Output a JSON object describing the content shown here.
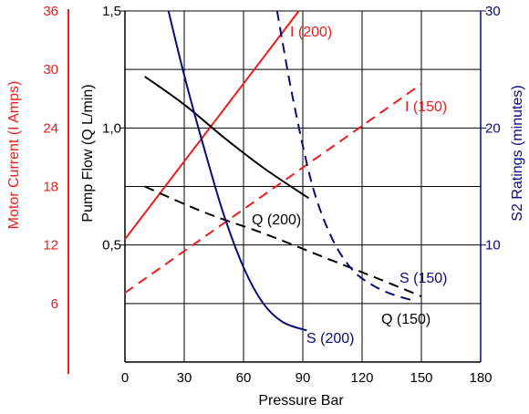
{
  "chart_data": {
    "type": "line",
    "xlabel": "Pressure Bar",
    "ylabel_left_outer": "Motor Current (I Amps)",
    "ylabel_left_inner": "Pump Flow (Q L/min)",
    "ylabel_right": "S2 Ratings (minutes)",
    "xlim": [
      0,
      180
    ],
    "xticks": [
      "0",
      "30",
      "60",
      "90",
      "120",
      "150",
      "180"
    ],
    "current_axis": {
      "ylim": [
        0,
        36
      ],
      "ticks": [
        "6",
        "12",
        "18",
        "24",
        "30",
        "36"
      ]
    },
    "flow_axis": {
      "ylim": [
        0,
        1.5
      ],
      "ticks": [
        "0,5",
        "1,0",
        "1,5"
      ]
    },
    "s2_axis": {
      "ylim": [
        0,
        30
      ],
      "ticks": [
        "10",
        "20",
        "30"
      ]
    },
    "grid": true,
    "colors": {
      "current": "#ee1c1c",
      "flow": "#000000",
      "s2": "#0a0a78",
      "grid": "#000000"
    },
    "series": [
      {
        "name": "I (200)",
        "axis": "current",
        "dash": false,
        "x": [
          0,
          88
        ],
        "y": [
          12.6,
          36
        ]
      },
      {
        "name": "I (150)",
        "axis": "current",
        "dash": false,
        "dashed": true,
        "x": [
          0,
          150
        ],
        "y": [
          7.1,
          28.5
        ]
      },
      {
        "name": "Q (200)",
        "axis": "flow",
        "dashed": false,
        "x": [
          10,
          30,
          50,
          70,
          93
        ],
        "y": [
          1.22,
          1.1,
          0.96,
          0.83,
          0.7
        ]
      },
      {
        "name": "Q (150)",
        "axis": "flow",
        "dashed": true,
        "x": [
          10,
          40,
          70,
          100,
          130,
          150
        ],
        "y": [
          0.75,
          0.64,
          0.55,
          0.45,
          0.35,
          0.28
        ]
      },
      {
        "name": "S (200)",
        "axis": "s2",
        "dashed": false,
        "x": [
          22,
          30,
          40,
          50,
          60,
          70,
          80,
          92
        ],
        "y": [
          30,
          24.5,
          18.3,
          12.6,
          8.1,
          5,
          3.4,
          2.7
        ]
      },
      {
        "name": "S (150)",
        "axis": "s2",
        "dashed": true,
        "x": [
          77,
          85,
          95,
          105,
          115,
          125,
          135,
          145
        ],
        "y": [
          30,
          22.5,
          15,
          10.5,
          7.9,
          6.6,
          5.8,
          5.3
        ]
      }
    ],
    "labels": [
      "I (200)",
      "I (150)",
      "Q (200)",
      "Q (150)",
      "S (200)",
      "S (150)"
    ]
  }
}
